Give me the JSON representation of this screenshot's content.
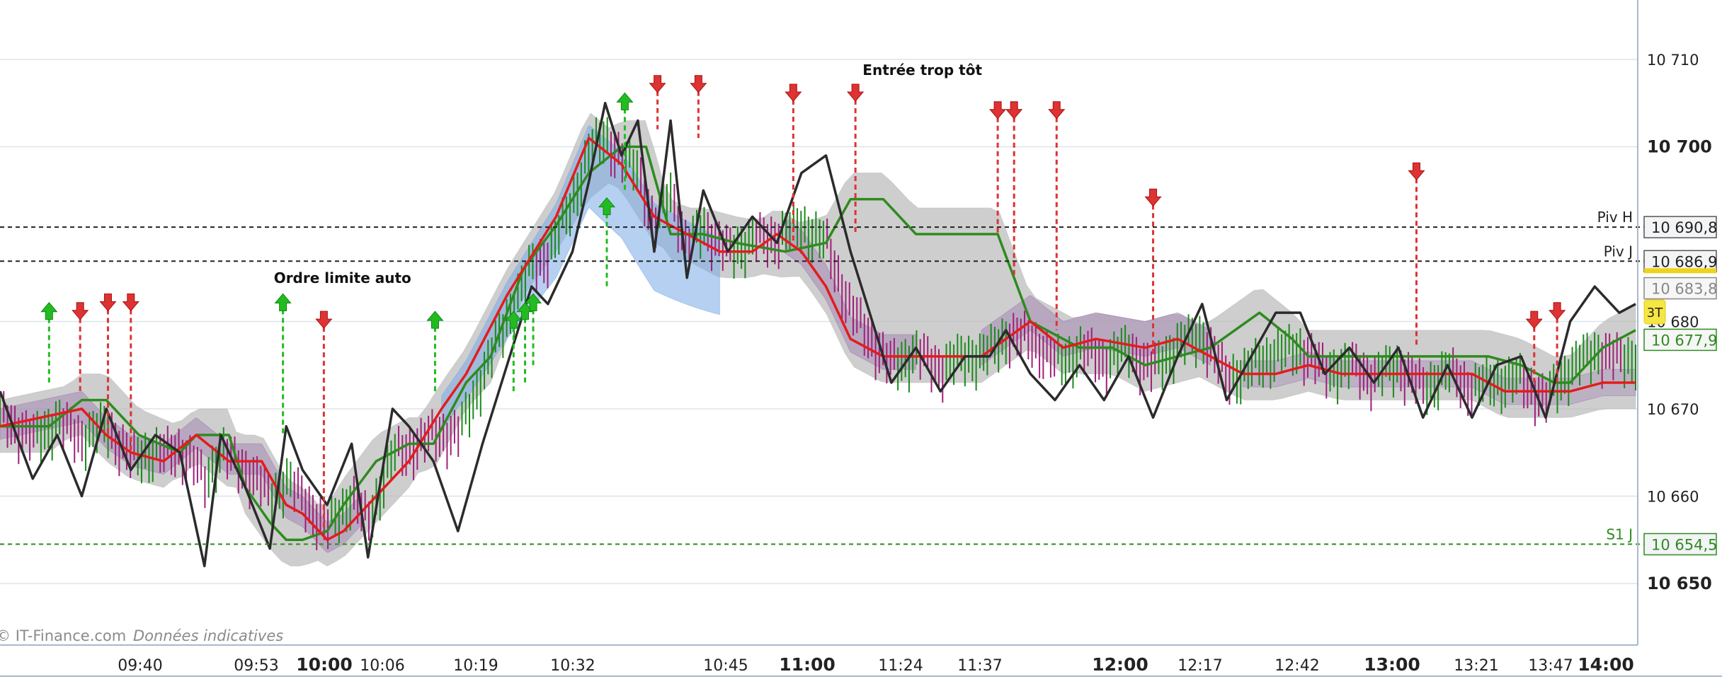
{
  "watermark": {
    "brand": "IT-Finance.com",
    "note": "Données indicatives"
  },
  "colors": {
    "price_line": "#2b2b2b",
    "tenkan": "#e31c1c",
    "kijun": "#2e8b1e",
    "cloud_gray": "#b9b9b9",
    "cloud_blue": "#7aaae6",
    "cloud_purple": "#9b7bb0",
    "bar_up": "#1a8a1a",
    "bar_down": "#a0207a",
    "arrow_up": "#22bb22",
    "arrow_down": "#dd3333",
    "badge": "#f5e642"
  },
  "chart_data": {
    "type": "line",
    "title": "",
    "xlabel": "",
    "ylabel": "",
    "ylim": [
      10643,
      10713
    ],
    "y_ticks": [
      {
        "value": 10710,
        "label": "10 710",
        "major": false
      },
      {
        "value": 10700,
        "label": "10 700",
        "major": true
      },
      {
        "value": 10680,
        "label": "10 680",
        "major": false
      },
      {
        "value": 10670,
        "label": "10 670",
        "major": false
      },
      {
        "value": 10660,
        "label": "10 660",
        "major": false
      },
      {
        "value": 10650,
        "label": "10 650",
        "major": true
      }
    ],
    "x_ticks": [
      {
        "label": "09:40",
        "major": false
      },
      {
        "label": "09:53",
        "major": false
      },
      {
        "label": "10:00",
        "major": true
      },
      {
        "label": "10:06",
        "major": false
      },
      {
        "label": "10:19",
        "major": false
      },
      {
        "label": "10:32",
        "major": false
      },
      {
        "label": "10:45",
        "major": false
      },
      {
        "label": "11:00",
        "major": true
      },
      {
        "label": "11:24",
        "major": false
      },
      {
        "label": "11:37",
        "major": false
      },
      {
        "label": "12:00",
        "major": true
      },
      {
        "label": "12:17",
        "major": false
      },
      {
        "label": "12:42",
        "major": false
      },
      {
        "label": "13:00",
        "major": true
      },
      {
        "label": "13:21",
        "major": false
      },
      {
        "label": "13:47",
        "major": false
      },
      {
        "label": "14:00",
        "major": true
      }
    ],
    "levels": [
      {
        "name": "Piv H",
        "value": 10690.8,
        "label": "10 690,8",
        "style": "dashed",
        "color": "#222222"
      },
      {
        "name": "Piv J",
        "value": 10686.9,
        "label": "10 686,9",
        "style": "dashed",
        "color": "#222222"
      },
      {
        "name": "S1 J",
        "value": 10654.5,
        "label": "10 654,5",
        "style": "dashed",
        "color": "#2e8b1e"
      }
    ],
    "price_boxes": [
      {
        "label": "10 683,8",
        "value": 10683.8,
        "color": "#888888"
      },
      {
        "label": "10 677,9",
        "value": 10677.9,
        "color": "#2e8b1e"
      }
    ],
    "badge": "3T",
    "annotations": [
      {
        "text": "Entrée trop tôt",
        "x": 0.53,
        "y": 10708.2
      },
      {
        "text": "Ordre limite auto",
        "x": 0.17,
        "y": 10684.4
      }
    ],
    "series": [
      {
        "name": "",
        "role": "price",
        "x": [
          0.0,
          0.02,
          0.035,
          0.05,
          0.065,
          0.08,
          0.095,
          0.11,
          0.125,
          0.135,
          0.15,
          0.165,
          0.175,
          0.185,
          0.2,
          0.215,
          0.225,
          0.24,
          0.25,
          0.265,
          0.28,
          0.295,
          0.31,
          0.325,
          0.335,
          0.35,
          0.36,
          0.37,
          0.38,
          0.39,
          0.4,
          0.41,
          0.42,
          0.43,
          0.445,
          0.46,
          0.475,
          0.49,
          0.505,
          0.52,
          0.53,
          0.545,
          0.56,
          0.575,
          0.59,
          0.605,
          0.615,
          0.63,
          0.645,
          0.66,
          0.675,
          0.69,
          0.705,
          0.72,
          0.735,
          0.75,
          0.765,
          0.78,
          0.795,
          0.81,
          0.825,
          0.84,
          0.855,
          0.87,
          0.885,
          0.9,
          0.915,
          0.93,
          0.945,
          0.96,
          0.975,
          0.99,
          1.0
        ],
        "values": [
          10672,
          10662,
          10667,
          10660,
          10670,
          10663,
          10667,
          10665,
          10652,
          10667,
          10661,
          10654,
          10668,
          10663,
          10659,
          10666,
          10653,
          10670,
          10668,
          10664,
          10656,
          10666,
          10675,
          10684,
          10682,
          10688,
          10696,
          10705,
          10699,
          10703,
          10688,
          10703,
          10685,
          10695,
          10688,
          10692,
          10689,
          10697,
          10699,
          10688,
          10682,
          10673,
          10677,
          10672,
          10676,
          10676,
          10679,
          10674,
          10671,
          10675,
          10671,
          10676,
          10669,
          10676,
          10682,
          10671,
          10676,
          10681,
          10681,
          10674,
          10677,
          10673,
          10677,
          10669,
          10675,
          10669,
          10675,
          10676,
          10669,
          10680,
          10684,
          10681,
          10682
        ]
      },
      {
        "name": "",
        "role": "tenkan",
        "x": [
          0.0,
          0.05,
          0.065,
          0.08,
          0.1,
          0.12,
          0.14,
          0.16,
          0.175,
          0.185,
          0.2,
          0.21,
          0.23,
          0.25,
          0.27,
          0.285,
          0.31,
          0.34,
          0.36,
          0.38,
          0.4,
          0.42,
          0.44,
          0.46,
          0.475,
          0.49,
          0.505,
          0.52,
          0.54,
          0.56,
          0.58,
          0.6,
          0.615,
          0.63,
          0.65,
          0.67,
          0.7,
          0.72,
          0.74,
          0.76,
          0.78,
          0.8,
          0.82,
          0.84,
          0.86,
          0.88,
          0.9,
          0.92,
          0.94,
          0.96,
          0.98,
          1.0
        ],
        "values": [
          10668,
          10670,
          10667,
          10665,
          10664,
          10667,
          10664,
          10664,
          10659,
          10658,
          10655,
          10656,
          10660,
          10664,
          10670,
          10674,
          10683,
          10692,
          10701,
          10698,
          10692,
          10690,
          10688,
          10688,
          10690,
          10688,
          10684,
          10678,
          10676,
          10676,
          10676,
          10676,
          10678,
          10680,
          10677,
          10678,
          10677,
          10678,
          10676,
          10674,
          10674,
          10675,
          10674,
          10674,
          10674,
          10674,
          10674,
          10672,
          10672,
          10672,
          10673,
          10673
        ]
      },
      {
        "name": "",
        "role": "kijun",
        "x": [
          0.0,
          0.03,
          0.05,
          0.065,
          0.085,
          0.11,
          0.12,
          0.14,
          0.15,
          0.165,
          0.175,
          0.185,
          0.2,
          0.21,
          0.23,
          0.25,
          0.265,
          0.285,
          0.3,
          0.32,
          0.34,
          0.36,
          0.38,
          0.395,
          0.41,
          0.43,
          0.45,
          0.48,
          0.505,
          0.52,
          0.54,
          0.56,
          0.59,
          0.61,
          0.63,
          0.66,
          0.68,
          0.7,
          0.72,
          0.74,
          0.77,
          0.79,
          0.8,
          0.82,
          0.85,
          0.87,
          0.89,
          0.91,
          0.93,
          0.95,
          0.96,
          0.98,
          1.0
        ],
        "values": [
          10668,
          10668,
          10671,
          10671,
          10667,
          10665,
          10667,
          10667,
          10661,
          10657,
          10655,
          10655,
          10656,
          10659,
          10664,
          10666,
          10666,
          10673,
          10676,
          10686,
          10691,
          10697,
          10700,
          10700,
          10690,
          10690,
          10689,
          10688,
          10689,
          10694,
          10694,
          10690,
          10690,
          10690,
          10680,
          10677,
          10677,
          10675,
          10676,
          10677,
          10681,
          10678,
          10676,
          10676,
          10676,
          10676,
          10676,
          10676,
          10675,
          10673,
          10673,
          10677,
          10679
        ]
      }
    ],
    "signals": [
      {
        "dir": "up",
        "x": 0.03,
        "top": 10682,
        "end": 10673
      },
      {
        "dir": "down",
        "x": 0.049,
        "top": 10682,
        "end": 10672
      },
      {
        "dir": "down",
        "x": 0.066,
        "top": 10683,
        "end": 10667
      },
      {
        "dir": "down",
        "x": 0.08,
        "top": 10683,
        "end": 10665
      },
      {
        "dir": "up",
        "x": 0.173,
        "top": 10683,
        "end": 10667
      },
      {
        "dir": "down",
        "x": 0.198,
        "top": 10681,
        "end": 10656
      },
      {
        "dir": "up",
        "x": 0.266,
        "top": 10681,
        "end": 10672
      },
      {
        "dir": "up",
        "x": 0.314,
        "top": 10681,
        "end": 10672
      },
      {
        "dir": "up",
        "x": 0.321,
        "top": 10682,
        "end": 10673
      },
      {
        "dir": "up",
        "x": 0.326,
        "top": 10683,
        "end": 10675
      },
      {
        "dir": "up",
        "x": 0.371,
        "top": 10694,
        "end": 10684
      },
      {
        "dir": "up",
        "x": 0.382,
        "top": 10706,
        "end": 10695
      },
      {
        "dir": "down",
        "x": 0.402,
        "top": 10708,
        "end": 10702
      },
      {
        "dir": "down",
        "x": 0.427,
        "top": 10708,
        "end": 10701
      },
      {
        "dir": "down",
        "x": 0.485,
        "top": 10707,
        "end": 10689
      },
      {
        "dir": "down",
        "x": 0.523,
        "top": 10707,
        "end": 10690
      },
      {
        "dir": "down",
        "x": 0.61,
        "top": 10705,
        "end": 10690
      },
      {
        "dir": "down",
        "x": 0.62,
        "top": 10705,
        "end": 10685
      },
      {
        "dir": "down",
        "x": 0.646,
        "top": 10705,
        "end": 10679
      },
      {
        "dir": "down",
        "x": 0.705,
        "top": 10695,
        "end": 10676
      },
      {
        "dir": "down",
        "x": 0.866,
        "top": 10698,
        "end": 10677
      },
      {
        "dir": "down",
        "x": 0.938,
        "top": 10681,
        "end": 10673
      },
      {
        "dir": "down",
        "x": 0.952,
        "top": 10682,
        "end": 10673
      }
    ]
  }
}
